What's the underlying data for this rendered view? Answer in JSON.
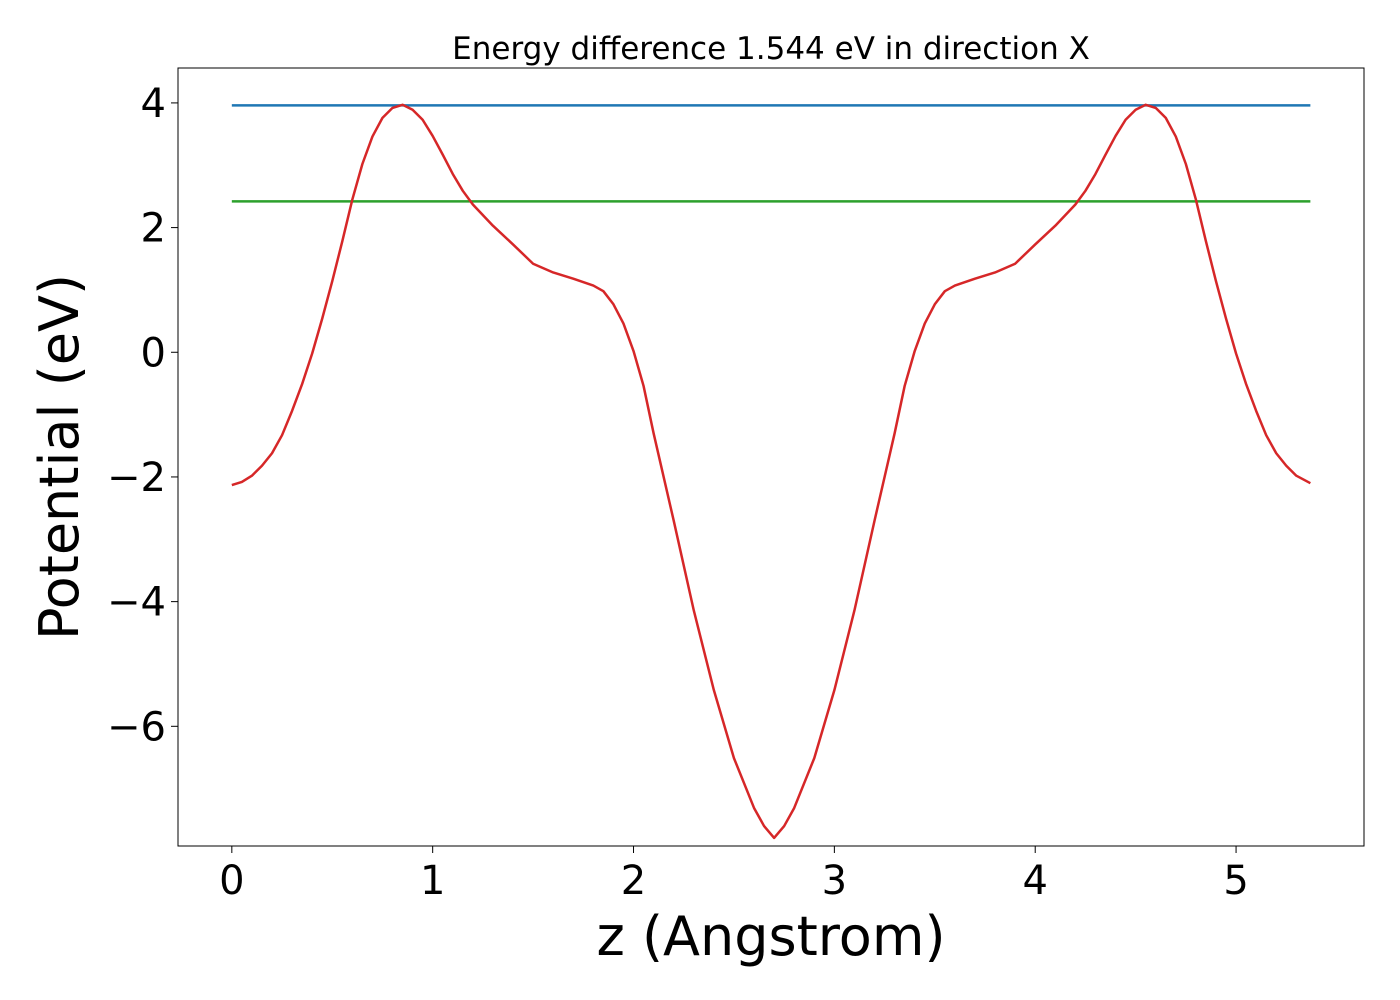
{
  "chart_data": {
    "type": "line",
    "title": "Energy difference 1.544 eV in direction X",
    "xlabel": "z (Angstrom)",
    "ylabel": "Potential (eV)",
    "xlim": [
      -0.268,
      5.637
    ],
    "ylim": [
      -7.92,
      4.56
    ],
    "xticks": [
      0,
      1,
      2,
      3,
      4,
      5
    ],
    "yticks": [
      {
        "value": -6,
        "label": "−6"
      },
      {
        "value": -4,
        "label": "−4"
      },
      {
        "value": -2,
        "label": "−2"
      },
      0,
      2,
      4
    ],
    "grid": false,
    "series": [
      {
        "color": "#d62728",
        "x": [
          0,
          0.05,
          0.1,
          0.15,
          0.2,
          0.25,
          0.3,
          0.35,
          0.4,
          0.45,
          0.5,
          0.55,
          0.6,
          0.65,
          0.7,
          0.75,
          0.8,
          0.85,
          0.9,
          0.95,
          1.0,
          1.05,
          1.1,
          1.15,
          1.2,
          1.3,
          1.4,
          1.5,
          1.6,
          1.7,
          1.8,
          1.85,
          1.9,
          1.95,
          2.0,
          2.05,
          2.1,
          2.2,
          2.3,
          2.4,
          2.5,
          2.6,
          2.65,
          2.7,
          2.75,
          2.8,
          2.9,
          3.0,
          3.1,
          3.2,
          3.3,
          3.35,
          3.4,
          3.45,
          3.5,
          3.55,
          3.6,
          3.7,
          3.8,
          3.9,
          4.0,
          4.1,
          4.2,
          4.25,
          4.3,
          4.35,
          4.4,
          4.45,
          4.5,
          4.55,
          4.6,
          4.65,
          4.7,
          4.75,
          4.8,
          4.85,
          4.9,
          4.95,
          5.0,
          5.05,
          5.1,
          5.15,
          5.2,
          5.25,
          5.3,
          5.37
        ],
        "values": [
          -2.13,
          -2.08,
          -1.98,
          -1.82,
          -1.62,
          -1.33,
          -0.94,
          -0.51,
          -0.02,
          0.54,
          1.14,
          1.78,
          2.45,
          3.02,
          3.46,
          3.76,
          3.92,
          3.97,
          3.89,
          3.73,
          3.47,
          3.17,
          2.86,
          2.59,
          2.37,
          2.03,
          1.73,
          1.42,
          1.28,
          1.18,
          1.07,
          0.98,
          0.77,
          0.46,
          0.02,
          -0.54,
          -1.3,
          -2.7,
          -4.14,
          -5.42,
          -6.51,
          -7.31,
          -7.6,
          -7.79,
          -7.6,
          -7.31,
          -6.51,
          -5.42,
          -4.14,
          -2.7,
          -1.3,
          -0.54,
          0.02,
          0.46,
          0.77,
          0.98,
          1.07,
          1.18,
          1.28,
          1.42,
          1.73,
          2.03,
          2.37,
          2.59,
          2.86,
          3.17,
          3.47,
          3.73,
          3.89,
          3.97,
          3.92,
          3.76,
          3.46,
          3.02,
          2.45,
          1.78,
          1.14,
          0.54,
          -0.02,
          -0.51,
          -0.94,
          -1.33,
          -1.62,
          -1.82,
          -1.98,
          -2.1
        ]
      },
      {
        "color": "#1f77b4",
        "x": [
          0,
          5.37
        ],
        "values": [
          3.96,
          3.96
        ]
      },
      {
        "color": "#2ca02c",
        "x": [
          0,
          5.37
        ],
        "values": [
          2.42,
          2.42
        ]
      }
    ]
  }
}
